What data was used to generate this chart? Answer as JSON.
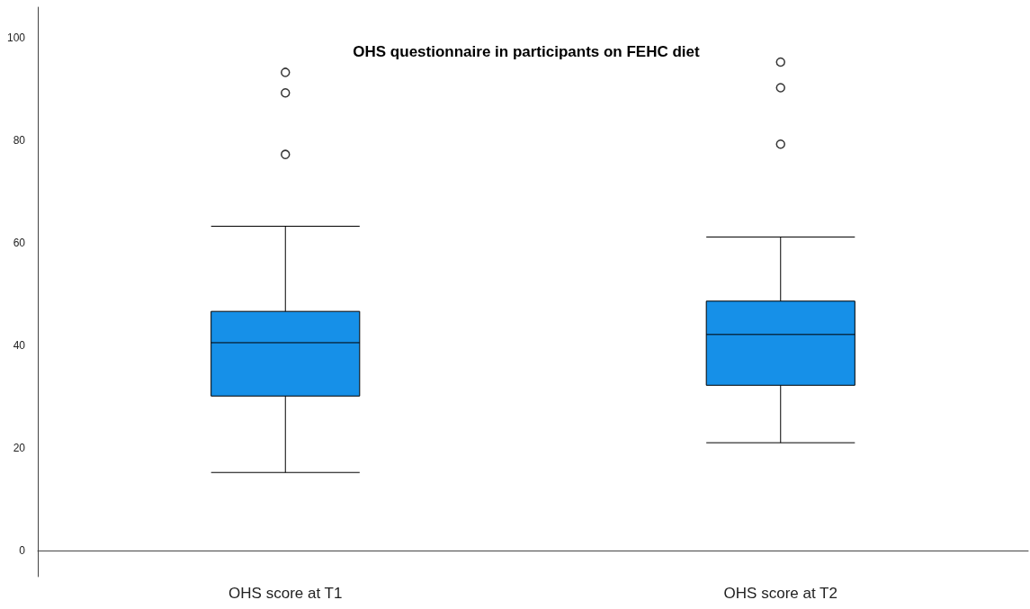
{
  "chart_data": {
    "type": "box",
    "title": "OHS questionnaire in participants on FEHC diet",
    "categories": [
      "OHS score at T1",
      "OHS score at T2"
    ],
    "series": [
      {
        "color": "#1690e8",
        "boxes": [
          {
            "low": 15.3,
            "q1": 30.2,
            "median": 40.6,
            "q3": 46.7,
            "high": 63.3,
            "outliers": [
              93.3,
              89.3,
              77.3
            ]
          },
          {
            "low": 21.1,
            "q1": 32.3,
            "median": 42.2,
            "q3": 48.7,
            "high": 61.2,
            "outliers": [
              95.3,
              90.3,
              79.3
            ]
          }
        ]
      }
    ],
    "ylim": [
      -5,
      106
    ],
    "yticks": [
      0,
      20,
      40,
      60,
      80,
      100
    ]
  }
}
